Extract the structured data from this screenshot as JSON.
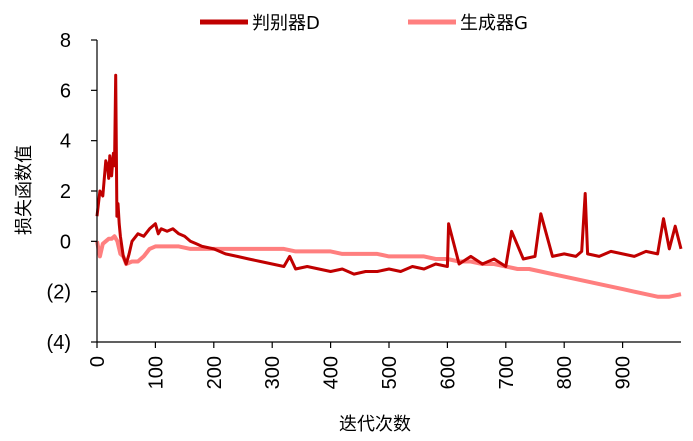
{
  "chart_data": {
    "type": "line",
    "xlabel": "迭代次数",
    "ylabel": "损失函数值",
    "x_ticks": [
      "0",
      "100",
      "200",
      "300",
      "400",
      "500",
      "600",
      "700",
      "800",
      "900"
    ],
    "y_ticks": [
      "(4)",
      "(2)",
      "0",
      "2",
      "4",
      "6",
      "8"
    ],
    "xlim": [
      0,
      1000
    ],
    "ylim": [
      -4,
      8
    ],
    "legend_position": "top",
    "grid": false,
    "series": [
      {
        "name": "判别器D",
        "color": "#c00000",
        "x": [
          0,
          5,
          10,
          15,
          18,
          20,
          22,
          25,
          28,
          30,
          32,
          34,
          36,
          38,
          40,
          45,
          50,
          55,
          60,
          70,
          80,
          90,
          100,
          105,
          110,
          120,
          130,
          140,
          150,
          160,
          170,
          180,
          200,
          220,
          240,
          260,
          280,
          300,
          320,
          330,
          340,
          360,
          380,
          400,
          420,
          440,
          460,
          480,
          500,
          520,
          540,
          560,
          580,
          600,
          602,
          620,
          640,
          660,
          680,
          700,
          710,
          730,
          750,
          760,
          780,
          800,
          820,
          830,
          836,
          840,
          860,
          880,
          900,
          920,
          940,
          960,
          970,
          980,
          990,
          1000
        ],
        "y": [
          1.0,
          2.0,
          1.8,
          3.2,
          3.0,
          2.5,
          3.4,
          2.6,
          3.5,
          3.0,
          6.6,
          1.0,
          1.5,
          0.7,
          0.2,
          -0.6,
          -0.9,
          -0.5,
          0.0,
          0.3,
          0.2,
          0.5,
          0.7,
          0.3,
          0.5,
          0.4,
          0.5,
          0.3,
          0.2,
          0.0,
          -0.1,
          -0.2,
          -0.3,
          -0.5,
          -0.6,
          -0.7,
          -0.8,
          -0.9,
          -1.0,
          -0.6,
          -1.1,
          -1.0,
          -1.1,
          -1.2,
          -1.1,
          -1.3,
          -1.2,
          -1.2,
          -1.1,
          -1.2,
          -1.0,
          -1.1,
          -0.9,
          -1.0,
          0.7,
          -0.9,
          -0.6,
          -0.9,
          -0.7,
          -1.0,
          0.4,
          -0.7,
          -0.6,
          1.1,
          -0.6,
          -0.5,
          -0.6,
          -0.4,
          1.9,
          -0.5,
          -0.6,
          -0.4,
          -0.5,
          -0.6,
          -0.4,
          -0.5,
          0.9,
          -0.3,
          0.6,
          -0.3
        ]
      },
      {
        "name": "生成器G",
        "color": "#ff7f7f",
        "x": [
          0,
          5,
          10,
          20,
          25,
          30,
          35,
          40,
          45,
          50,
          60,
          70,
          80,
          90,
          100,
          120,
          140,
          160,
          180,
          200,
          220,
          240,
          260,
          280,
          300,
          320,
          340,
          360,
          380,
          400,
          420,
          440,
          460,
          480,
          500,
          520,
          540,
          560,
          580,
          600,
          620,
          640,
          660,
          680,
          700,
          720,
          740,
          760,
          780,
          800,
          820,
          840,
          860,
          880,
          900,
          920,
          940,
          960,
          980,
          1000
        ],
        "y": [
          0.0,
          -0.6,
          -0.1,
          0.1,
          0.1,
          0.2,
          0.0,
          -0.5,
          -0.6,
          -0.9,
          -0.8,
          -0.8,
          -0.6,
          -0.3,
          -0.2,
          -0.2,
          -0.2,
          -0.3,
          -0.3,
          -0.3,
          -0.3,
          -0.3,
          -0.3,
          -0.3,
          -0.3,
          -0.3,
          -0.4,
          -0.4,
          -0.4,
          -0.4,
          -0.5,
          -0.5,
          -0.5,
          -0.5,
          -0.6,
          -0.6,
          -0.6,
          -0.6,
          -0.7,
          -0.7,
          -0.8,
          -0.8,
          -0.9,
          -0.9,
          -1.0,
          -1.1,
          -1.1,
          -1.2,
          -1.3,
          -1.4,
          -1.5,
          -1.6,
          -1.7,
          -1.8,
          -1.9,
          -2.0,
          -2.1,
          -2.2,
          -2.2,
          -2.1
        ]
      }
    ]
  }
}
